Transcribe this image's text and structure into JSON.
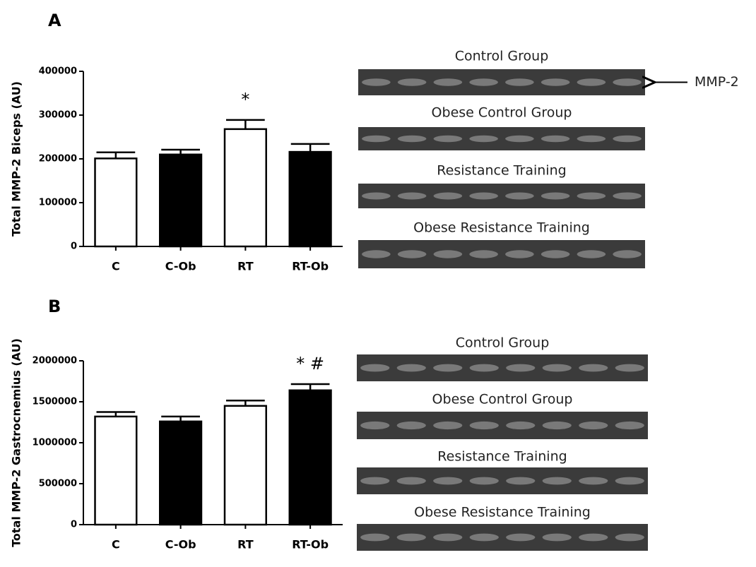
{
  "chart_data": [
    {
      "type": "bar",
      "panel_label": "A",
      "y_label": "Total MMP-2 Biceps (AU)",
      "categories": [
        "C",
        "C-Ob",
        "RT",
        "RT-Ob"
      ],
      "values": [
        201000,
        210000,
        268000,
        216000
      ],
      "errors": [
        14000,
        11000,
        21000,
        18000
      ],
      "colors": [
        "#ffffff",
        "#000000",
        "#ffffff",
        "#000000"
      ],
      "annotations": [
        null,
        null,
        "*",
        null
      ],
      "ylim": [
        0,
        400000
      ],
      "yticks": [
        0,
        100000,
        200000,
        300000,
        400000
      ],
      "gels": [
        "Control Group",
        "Obese Control Group",
        "Resistance Training",
        "Obese Resistance Training"
      ],
      "band_label": "MMP-2"
    },
    {
      "type": "bar",
      "panel_label": "B",
      "y_label": "Total MMP-2 Gastrocnemius (AU)",
      "categories": [
        "C",
        "C-Ob",
        "RT",
        "RT-Ob"
      ],
      "values": [
        1320000,
        1260000,
        1450000,
        1640000
      ],
      "errors": [
        55000,
        60000,
        65000,
        75000
      ],
      "colors": [
        "#ffffff",
        "#000000",
        "#ffffff",
        "#000000"
      ],
      "annotations": [
        null,
        null,
        null,
        "* #"
      ],
      "ylim": [
        0,
        2000000
      ],
      "yticks": [
        0,
        500000,
        1000000,
        1500000,
        2000000
      ],
      "gels": [
        "Control Group",
        "Obese Control Group",
        "Resistance Training",
        "Obese Resistance Training"
      ]
    }
  ]
}
